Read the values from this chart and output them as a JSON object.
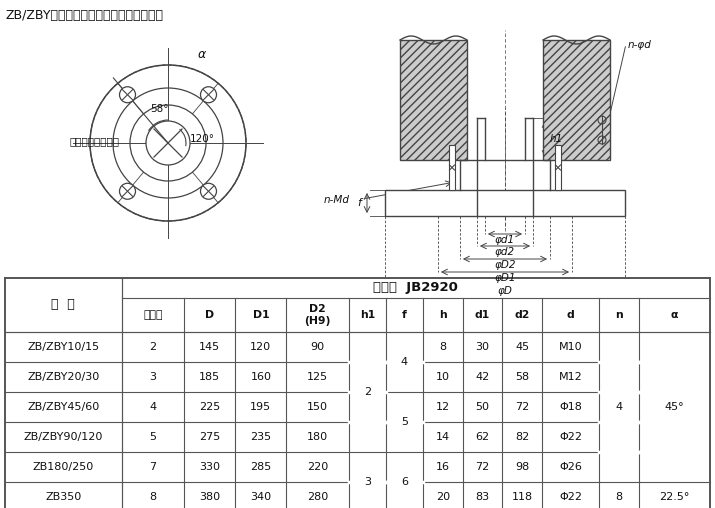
{
  "title": "ZB/ZBY与阀门连接的结构示意图及尺寸：",
  "table_header1": "转矩型  JB2920",
  "col_headers": [
    "法兰号",
    "D",
    "D1",
    "D2\n(H9)",
    "h1",
    "f",
    "h",
    "d1",
    "d2",
    "d",
    "n",
    "α"
  ],
  "row_label_header": "型  号",
  "label_parallel": "与螺杆轴心线平行",
  "bg_color": "#f0f0f0",
  "table_bg": "#ffffff",
  "border_color": "#555555",
  "text_color": "#111111"
}
